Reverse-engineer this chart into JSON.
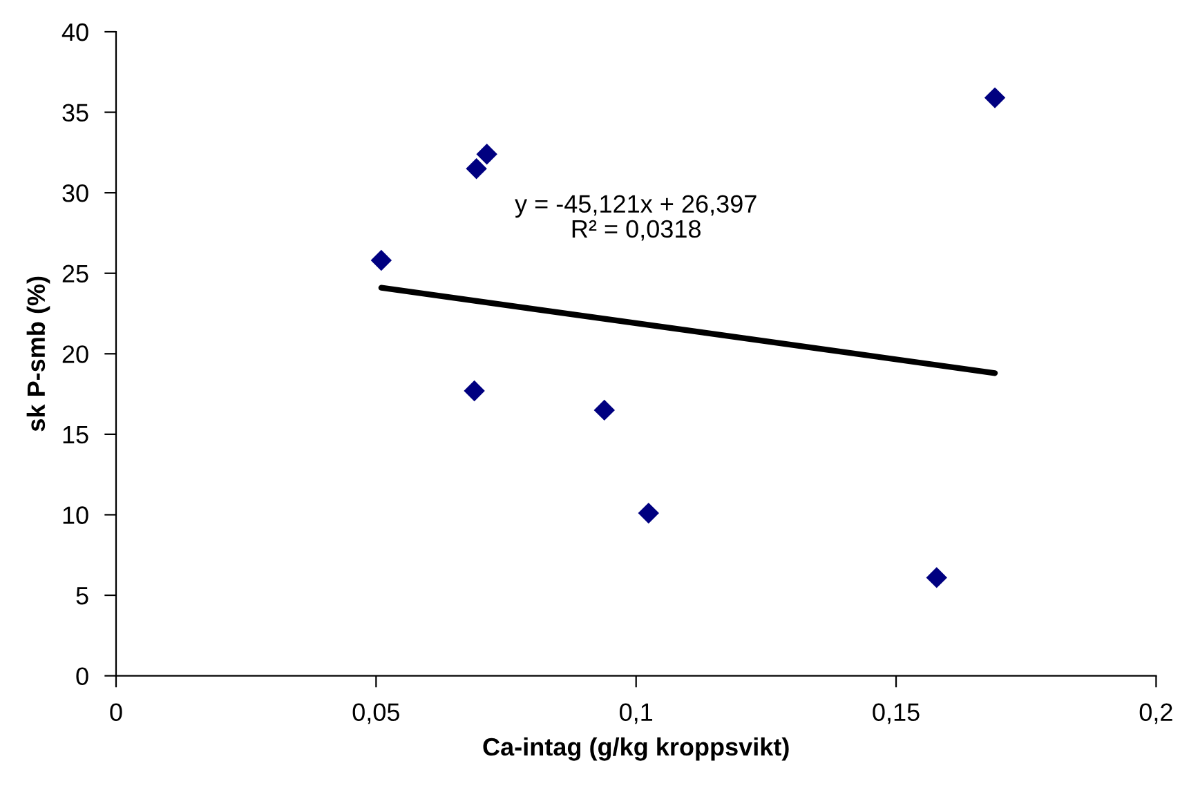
{
  "chart_data": {
    "type": "scatter",
    "xlabel": "Ca-intag (g/kg kroppsvikt)",
    "ylabel": "sk P-smb (%)",
    "xlim": [
      0,
      0.2
    ],
    "ylim": [
      0,
      40
    ],
    "xticks": [
      {
        "value": 0,
        "label": "0"
      },
      {
        "value": 0.05,
        "label": "0,05"
      },
      {
        "value": 0.1,
        "label": "0,1"
      },
      {
        "value": 0.15,
        "label": "0,15"
      },
      {
        "value": 0.2,
        "label": "0,2"
      }
    ],
    "yticks": [
      0,
      5,
      10,
      15,
      20,
      25,
      30,
      35,
      40
    ],
    "grid": false,
    "marker": "diamond",
    "series": [
      {
        "color": "#000080",
        "x": [
          0.051,
          0.0693,
          0.0713,
          0.0689,
          0.0939,
          0.1024,
          0.1578,
          0.169
        ],
        "values": [
          25.8,
          31.5,
          32.4,
          17.7,
          16.5,
          10.1,
          6.1,
          35.9
        ]
      },
      {
        "type": "line",
        "color": "#000000",
        "marker": "none",
        "line_style": "solid",
        "x": [
          0.051,
          0.169
        ],
        "values": [
          24.1,
          18.8
        ]
      }
    ],
    "annotations": [
      "y = -45,121x + 26,397\nR² = 0,0318"
    ]
  }
}
